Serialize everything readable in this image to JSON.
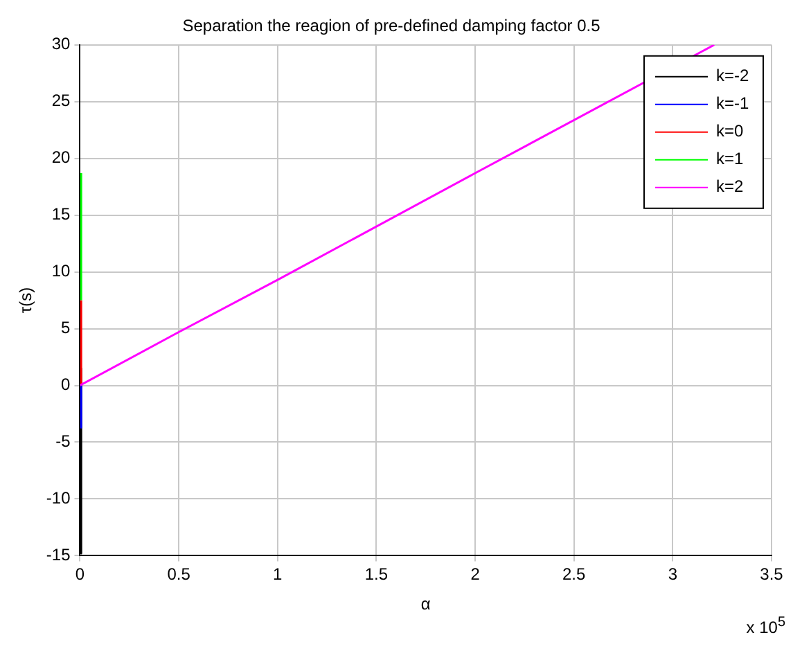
{
  "chart_data": {
    "type": "line",
    "title": "Separation the reagion of pre-defined damping factor 0.5",
    "xlabel": "α",
    "ylabel": "τ(s)",
    "series": [
      {
        "name": "k=-2",
        "color": "#000000",
        "x": [
          0.006,
          0.006
        ],
        "values": [
          1.5,
          -14.8
        ]
      },
      {
        "name": "k=-1",
        "color": "#0000ff",
        "x": [
          0.006,
          0.006
        ],
        "values": [
          0,
          -3.7
        ]
      },
      {
        "name": "k=0",
        "color": "#ff0000",
        "x": [
          0.006,
          0.006
        ],
        "values": [
          0,
          7.5
        ]
      },
      {
        "name": "k=1",
        "color": "#00ff00",
        "x": [
          0.006,
          0.006
        ],
        "values": [
          7.5,
          18.7
        ]
      },
      {
        "name": "k=2",
        "color": "#ff00ff",
        "x": [
          0,
          0.5,
          1,
          2,
          3.21
        ],
        "values": [
          0,
          4.7,
          9.3,
          18.7,
          30
        ]
      }
    ],
    "xlim": [
      0,
      3.5
    ],
    "xticks": [
      0,
      0.5,
      1,
      1.5,
      2,
      2.5,
      3,
      3.5
    ],
    "ylim": [
      -15,
      30
    ],
    "yticks": [
      -15,
      -10,
      -5,
      0,
      5,
      10,
      15,
      20,
      25,
      30
    ],
    "annotations": [
      "x 10$^{5}$"
    ],
    "grid": true,
    "legend": "top right",
    "marker": "none",
    "line_style": "solid"
  }
}
